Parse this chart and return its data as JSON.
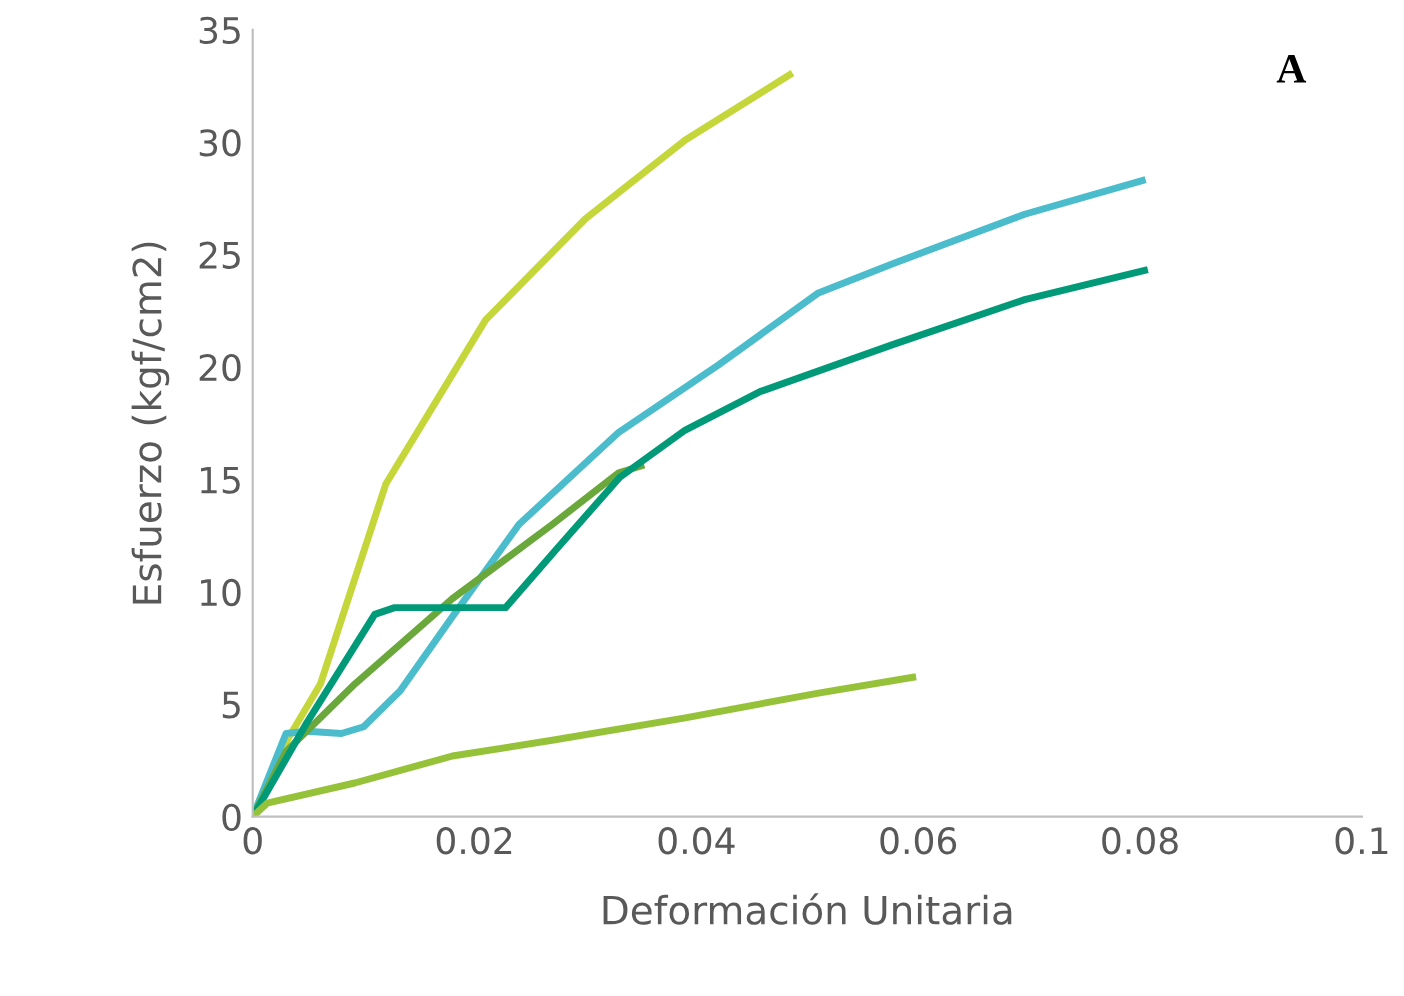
{
  "chart_data": {
    "type": "line",
    "xlabel": "Deformación Unitaria",
    "ylabel": "Esfuerzo (kgf/cm2)",
    "annotations": [
      "A"
    ],
    "xlim": [
      0,
      0.1
    ],
    "ylim": [
      0,
      35
    ],
    "xticks": [
      0,
      0.02,
      0.04,
      0.06,
      0.08,
      0.1
    ],
    "yticks": [
      0,
      5,
      10,
      15,
      20,
      25,
      30,
      35
    ],
    "grid": false,
    "legend": false,
    "marker": "none",
    "line_style": "solid",
    "series": [
      {
        "color": "#c5d63a",
        "x": [
          0,
          0.0025,
          0.0061,
          0.012,
          0.021,
          0.03,
          0.039,
          0.0484
        ],
        "values": [
          0,
          2.9,
          5.9,
          14.8,
          22.1,
          26.6,
          30.1,
          33.0
        ]
      },
      {
        "color": "#4bbccb",
        "x": [
          0,
          0.003,
          0.0049,
          0.008,
          0.01,
          0.0133,
          0.018,
          0.024,
          0.033,
          0.042,
          0.051,
          0.0577,
          0.0696,
          0.0802
        ],
        "values": [
          0,
          3.7,
          3.8,
          3.7,
          4.0,
          5.6,
          8.9,
          13.0,
          17.1,
          20.1,
          23.3,
          24.6,
          26.8,
          28.3
        ]
      },
      {
        "color": "#6aa83c",
        "x": [
          0,
          0.003,
          0.0092,
          0.018,
          0.027,
          0.033,
          0.035
        ],
        "values": [
          0,
          2.9,
          5.9,
          9.7,
          13.0,
          15.3,
          15.6
        ]
      },
      {
        "color": "#009a78",
        "x": [
          0,
          0.0049,
          0.011,
          0.0128,
          0.0228,
          0.0272,
          0.0331,
          0.039,
          0.0457,
          0.0577,
          0.0696,
          0.0804
        ],
        "values": [
          0,
          4.2,
          9.0,
          9.3,
          9.3,
          11.8,
          15.1,
          17.2,
          18.9,
          21.0,
          23.0,
          24.3
        ]
      },
      {
        "color": "#96c23a",
        "x": [
          0,
          0.0013,
          0.0092,
          0.018,
          0.027,
          0.039,
          0.051,
          0.0595
        ],
        "values": [
          0,
          0.6,
          1.5,
          2.7,
          3.4,
          4.4,
          5.5,
          6.2
        ]
      }
    ]
  }
}
